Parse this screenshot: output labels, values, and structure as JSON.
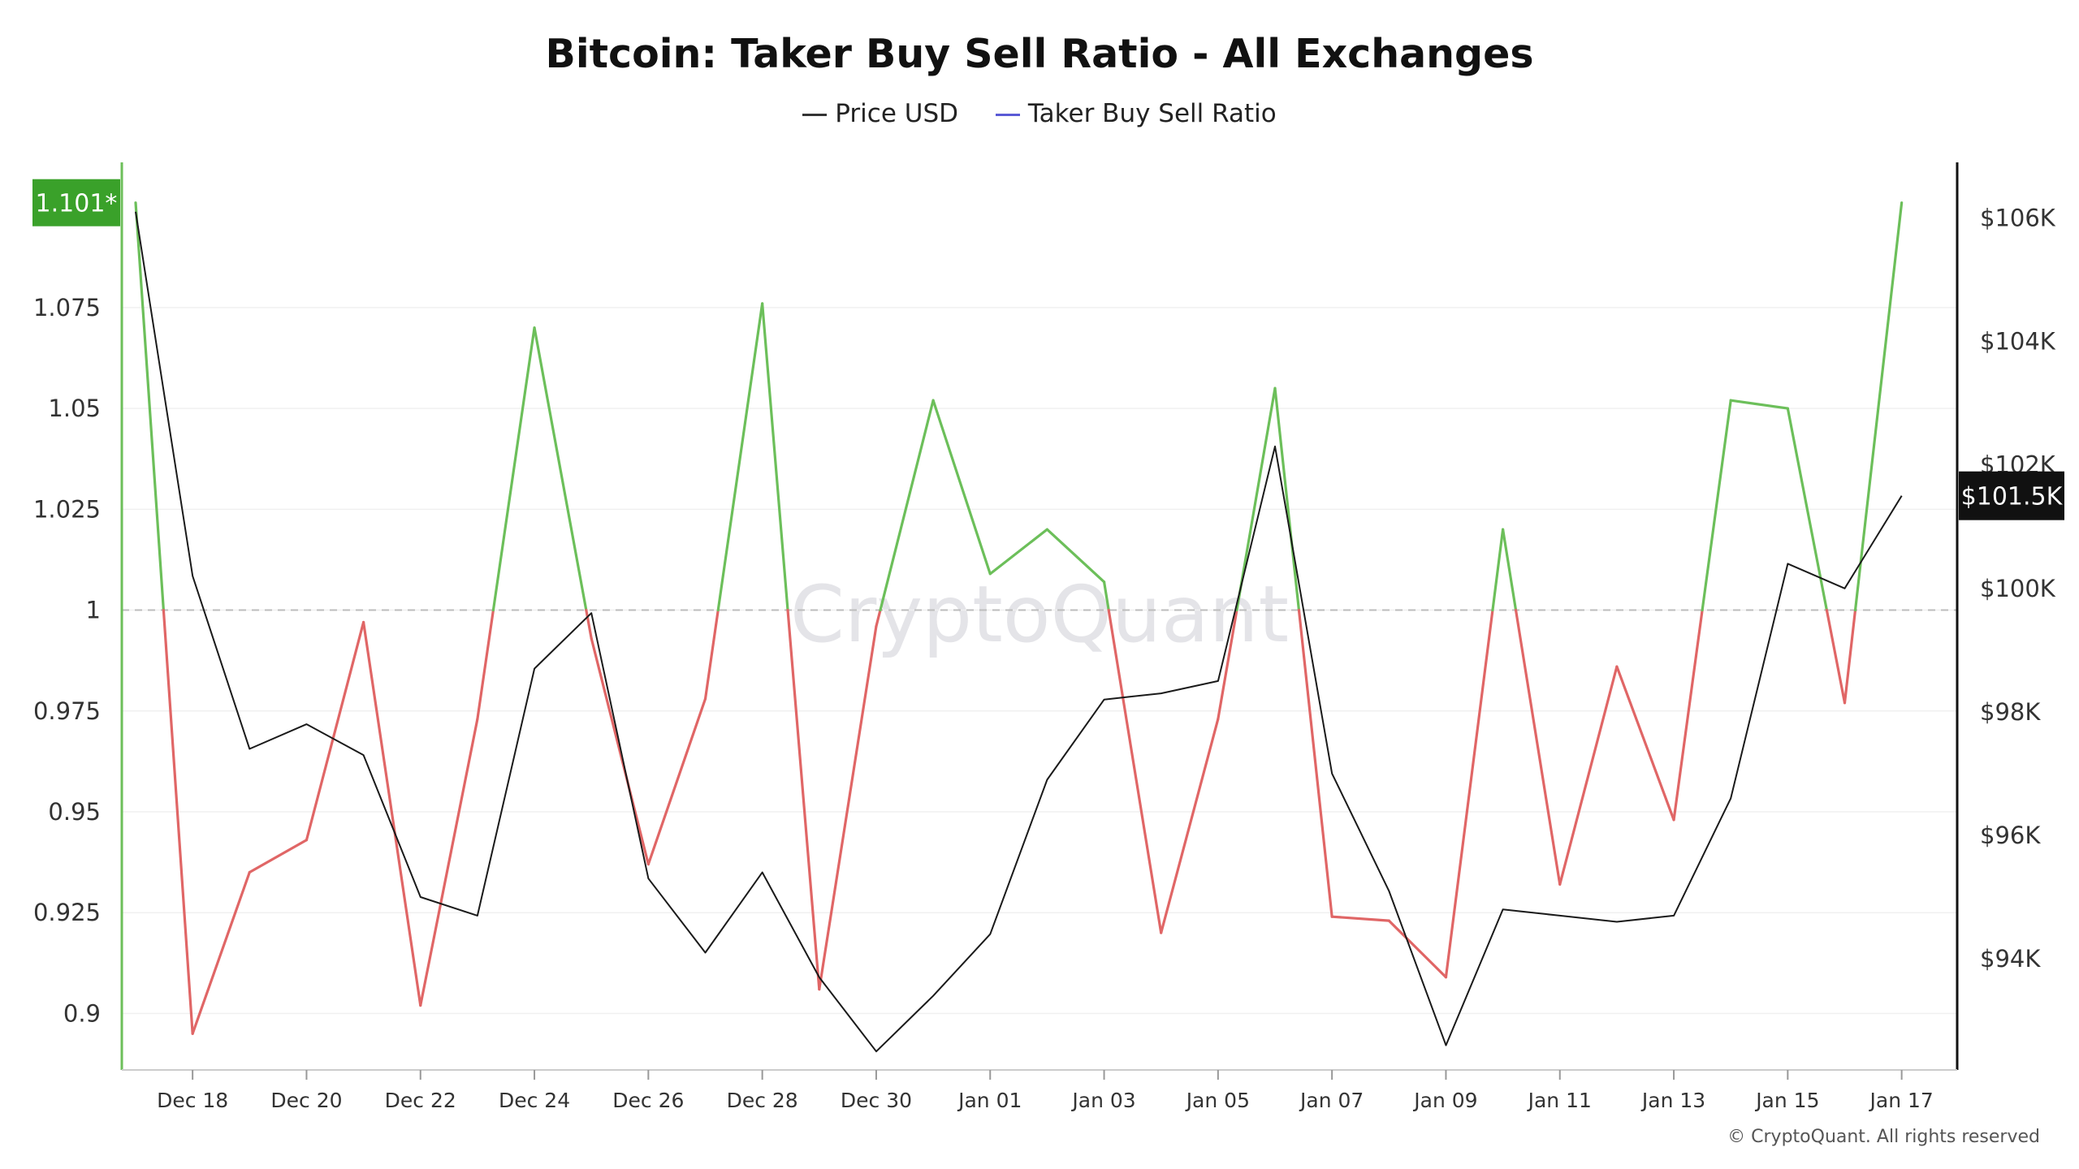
{
  "title": "Bitcoin: Taker Buy Sell Ratio - All Exchanges",
  "legend": [
    {
      "label": "Price USD",
      "color": "#333333"
    },
    {
      "label": "Taker Buy Sell Ratio",
      "color": "#5a5ad6"
    }
  ],
  "watermark": "CryptoQuant",
  "footer": "© CryptoQuant. All rights reserved",
  "colors": {
    "above": "#6cbf5a",
    "below": "#e06666",
    "price": "#1a1a1a",
    "badge_ratio": "#3aa12a",
    "badge_price": "#111111",
    "axis_left": "#6cbf5a"
  },
  "chart_data": {
    "type": "line",
    "x": [
      "Dec 17",
      "Dec 18",
      "Dec 19",
      "Dec 20",
      "Dec 21",
      "Dec 22",
      "Dec 23",
      "Dec 24",
      "Dec 25",
      "Dec 26",
      "Dec 27",
      "Dec 28",
      "Dec 29",
      "Dec 30",
      "Dec 31",
      "Jan 01",
      "Jan 02",
      "Jan 03",
      "Jan 04",
      "Jan 05",
      "Jan 06",
      "Jan 07",
      "Jan 08",
      "Jan 09",
      "Jan 10",
      "Jan 11",
      "Jan 12",
      "Jan 13",
      "Jan 14",
      "Jan 15",
      "Jan 16",
      "Jan 17"
    ],
    "x_tick_labels": [
      "Dec 18",
      "Dec 20",
      "Dec 22",
      "Dec 24",
      "Dec 26",
      "Dec 28",
      "Dec 30",
      "Jan 01",
      "Jan 03",
      "Jan 05",
      "Jan 07",
      "Jan 09",
      "Jan 11",
      "Jan 13",
      "Jan 15",
      "Jan 17"
    ],
    "series": [
      {
        "name": "Taker Buy Sell Ratio",
        "axis": "left",
        "values": [
          1.101,
          0.895,
          0.935,
          0.943,
          0.997,
          0.902,
          0.973,
          1.07,
          0.993,
          0.937,
          0.978,
          1.076,
          0.906,
          0.996,
          1.052,
          1.009,
          1.02,
          1.007,
          0.92,
          0.973,
          1.055,
          0.924,
          0.923,
          0.909,
          1.02,
          0.932,
          0.986,
          0.948,
          1.052,
          1.05,
          0.977,
          1.101
        ]
      },
      {
        "name": "Price USD",
        "axis": "right",
        "values": [
          106100,
          100200,
          97400,
          97800,
          97300,
          95000,
          94700,
          98700,
          99600,
          95300,
          94100,
          95400,
          93700,
          92500,
          93400,
          94400,
          96900,
          98200,
          98300,
          98500,
          102300,
          97000,
          95100,
          92600,
          94800,
          94700,
          94600,
          94700,
          96600,
          100400,
          100000,
          101500
        ]
      }
    ],
    "left_axis": {
      "ticks": [
        "0.9",
        "0.925",
        "0.95",
        "0.975",
        "1",
        "1.025",
        "1.05",
        "1.075"
      ],
      "tick_values": [
        0.9,
        0.925,
        0.95,
        0.975,
        1,
        1.025,
        1.05,
        1.075
      ],
      "min": 0.886,
      "max": 1.111,
      "current_label": "1.101*",
      "current_value": 1.101,
      "reference_line": 1
    },
    "right_axis": {
      "ticks": [
        "$94K",
        "$96K",
        "$98K",
        "$100K",
        "$102K",
        "$104K",
        "$106K"
      ],
      "tick_values": [
        94000,
        96000,
        98000,
        100000,
        102000,
        104000,
        106000
      ],
      "min": 92200,
      "max": 106900,
      "current_label": "$101.5K",
      "current_value": 101500
    },
    "grid": true
  }
}
